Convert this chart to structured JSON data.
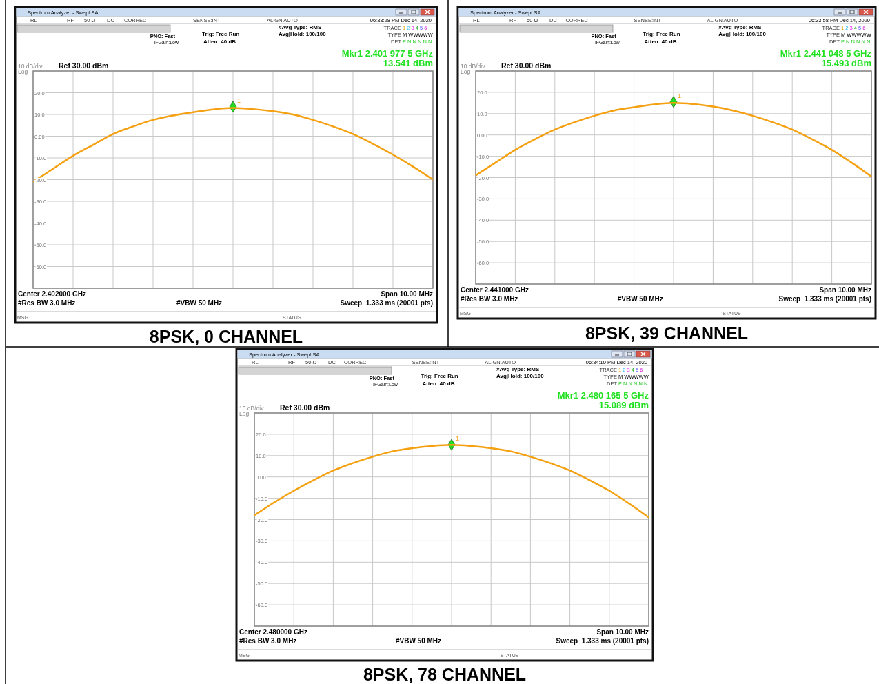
{
  "chart_data": [
    {
      "type": "line",
      "title": "8PSK, 0 CHANNEL",
      "categories": [
        null,
        null,
        null,
        null,
        null,
        null,
        null,
        null,
        null,
        null,
        null,
        null,
        null,
        null,
        null,
        null,
        null,
        null,
        null,
        null,
        null
      ],
      "series": [
        {
          "color": "#f5a010",
          "values": [
            -21,
            -15,
            -9,
            -4,
            1,
            4.5,
            7.5,
            9.5,
            11,
            12.3,
            13,
            12.5,
            11.5,
            10,
            7.5,
            4.5,
            1,
            -3.5,
            -8.5,
            -14,
            -20
          ]
        },
        {
          "type": "scatter",
          "name": "1",
          "marker": "diamond",
          "color": "#22dd22",
          "values": [
            null,
            null,
            null,
            null,
            null,
            null,
            null,
            null,
            null,
            null,
            13.5,
            null,
            null,
            null,
            null,
            null,
            null,
            null,
            null,
            null,
            null
          ]
        }
      ],
      "ylim": [
        -70,
        30
      ],
      "yticks": [
        {
          "value": 20,
          "label": "20.0"
        },
        {
          "value": 10,
          "label": "10.0"
        },
        {
          "value": 0,
          "label": "0.00"
        },
        {
          "value": -10,
          "label": "-10.0"
        },
        {
          "value": -20,
          "label": "-20.0"
        },
        {
          "value": -30,
          "label": "-30.0"
        },
        {
          "value": -40,
          "label": "-40.0"
        },
        {
          "value": -50,
          "label": "-50.0"
        },
        {
          "value": -60,
          "label": "-60.0"
        }
      ],
      "grid": true,
      "line_style": "solid",
      "annotations": [
        "Spectrum Analyzer - Swept SA",
        "RL",
        "RF",
        "50 Ω",
        "DC",
        "CORREC",
        "SENSE:INT",
        "ALIGN AUTO",
        "06:33:28 PM Dec 14, 2020",
        "PNO: Fast",
        "IFGain:Low",
        "Trig: Free Run",
        "Atten: 40 dB",
        "#Avg Type: RMS",
        "Avg|Hold: 100/100",
        "TRACE",
        "1 2 3 4 5 6",
        "TYPE",
        "M WWWWW",
        "DET",
        "P N N N N N",
        "Mkr1 2.401 977 5 GHz",
        "13.541 dBm",
        "10 dB/div",
        "Log",
        "Ref 30.00 dBm",
        "Center 2.402000 GHz",
        "#Res BW 3.0 MHz",
        "#VBW 50 MHz",
        "Span 10.00 MHz",
        "Sweep  1.333 ms (20001 pts)",
        "MSG",
        "STATUS"
      ]
    },
    {
      "type": "line",
      "title": "8PSK, 39 CHANNEL",
      "categories": [
        null,
        null,
        null,
        null,
        null,
        null,
        null,
        null,
        null,
        null,
        null,
        null,
        null,
        null,
        null,
        null,
        null,
        null,
        null,
        null,
        null
      ],
      "series": [
        {
          "color": "#f5a010",
          "values": [
            -19,
            -13,
            -7,
            -2,
            2.5,
            6,
            9,
            11.5,
            13,
            14.3,
            15,
            14.5,
            13.3,
            11.5,
            9,
            6,
            2.5,
            -2,
            -7,
            -13,
            -19.5
          ]
        },
        {
          "type": "scatter",
          "name": "1",
          "marker": "diamond",
          "color": "#22dd22",
          "values": [
            null,
            null,
            null,
            null,
            null,
            null,
            null,
            null,
            null,
            null,
            15.5,
            null,
            null,
            null,
            null,
            null,
            null,
            null,
            null,
            null,
            null
          ]
        }
      ],
      "ylim": [
        -70,
        30
      ],
      "yticks": [
        {
          "value": 20,
          "label": "20.0"
        },
        {
          "value": 10,
          "label": "10.0"
        },
        {
          "value": 0,
          "label": "0.00"
        },
        {
          "value": -10,
          "label": "-10.0"
        },
        {
          "value": -20,
          "label": "-20.0"
        },
        {
          "value": -30,
          "label": "-30.0"
        },
        {
          "value": -40,
          "label": "-40.0"
        },
        {
          "value": -50,
          "label": "-50.0"
        },
        {
          "value": -60,
          "label": "-60.0"
        }
      ],
      "grid": true,
      "line_style": "solid",
      "annotations": [
        "Spectrum Analyzer - Swept SA",
        "RL",
        "RF",
        "50 Ω",
        "DC",
        "CORREC",
        "SENSE:INT",
        "ALIGN AUTO",
        "06:33:58 PM Dec 14, 2020",
        "PNO: Fast",
        "IFGain:Low",
        "Trig: Free Run",
        "Atten: 40 dB",
        "#Avg Type: RMS",
        "Avg|Hold: 100/100",
        "TRACE",
        "1 2 3 4 5 6",
        "TYPE",
        "M WWWWW",
        "DET",
        "P N N N N N",
        "Mkr1 2.441 048 5 GHz",
        "15.493 dBm",
        "10 dB/div",
        "Log",
        "Ref 30.00 dBm",
        "Center 2.441000 GHz",
        "#Res BW 3.0 MHz",
        "#VBW 50 MHz",
        "Span 10.00 MHz",
        "Sweep  1.333 ms (20001 pts)",
        "MSG",
        "STATUS"
      ]
    },
    {
      "type": "line",
      "title": "8PSK, 78 CHANNEL",
      "categories": [
        null,
        null,
        null,
        null,
        null,
        null,
        null,
        null,
        null,
        null,
        null,
        null,
        null,
        null,
        null,
        null,
        null,
        null,
        null,
        null,
        null
      ],
      "series": [
        {
          "color": "#f5a010",
          "values": [
            -18,
            -12,
            -6.5,
            -1.5,
            3,
            6.5,
            9.5,
            12,
            13.5,
            14.5,
            15,
            14.5,
            13.5,
            12,
            9.5,
            6.5,
            3,
            -1.5,
            -6.5,
            -12.5,
            -19
          ]
        },
        {
          "type": "scatter",
          "name": "1",
          "marker": "diamond",
          "color": "#22dd22",
          "values": [
            null,
            null,
            null,
            null,
            null,
            null,
            null,
            null,
            null,
            null,
            15.1,
            null,
            null,
            null,
            null,
            null,
            null,
            null,
            null,
            null,
            null
          ]
        }
      ],
      "ylim": [
        -70,
        30
      ],
      "yticks": [
        {
          "value": 20,
          "label": "20.0"
        },
        {
          "value": 10,
          "label": "10.0"
        },
        {
          "value": 0,
          "label": "0.00"
        },
        {
          "value": -10,
          "label": "-10.0"
        },
        {
          "value": -20,
          "label": "-20.0"
        },
        {
          "value": -30,
          "label": "-30.0"
        },
        {
          "value": -40,
          "label": "-40.0"
        },
        {
          "value": -50,
          "label": "-50.0"
        },
        {
          "value": -60,
          "label": "-60.0"
        }
      ],
      "grid": true,
      "line_style": "solid",
      "annotations": [
        "Spectrum Analyzer - Swept SA",
        "RL",
        "RF",
        "50 Ω",
        "DC",
        "CORREC",
        "SENSE:INT",
        "ALIGN AUTO",
        "06:34:10 PM Dec 14, 2020",
        "PNO: Fast",
        "IFGain:Low",
        "Trig: Free Run",
        "Atten: 40 dB",
        "#Avg Type: RMS",
        "Avg|Hold: 100/100",
        "TRACE",
        "1 2 3 4 5 6",
        "TYPE",
        "M WWWWW",
        "DET",
        "P N N N N N",
        "Mkr1 2.480 165 5 GHz",
        "15.089 dBm",
        "10 dB/div",
        "Log",
        "Ref 30.00 dBm",
        "Center 2.480000 GHz",
        "#Res BW 3.0 MHz",
        "#VBW 50 MHz",
        "Span 10.00 MHz",
        "Sweep  1.333 ms (20001 pts)",
        "MSG",
        "STATUS"
      ]
    }
  ]
}
